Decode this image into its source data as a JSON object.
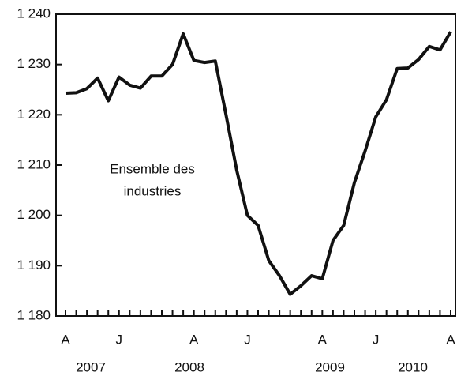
{
  "chart_data": {
    "type": "line",
    "annotation": [
      "Ensemble des",
      "industries"
    ],
    "years": [
      "2007",
      "2008",
      "2009",
      "2010"
    ],
    "categories": [
      "A",
      null,
      null,
      null,
      null,
      "J",
      null,
      null,
      null,
      null,
      null,
      null,
      "A",
      null,
      null,
      null,
      null,
      "J",
      null,
      null,
      null,
      null,
      null,
      null,
      "A",
      null,
      null,
      null,
      null,
      "J",
      null,
      null,
      null,
      null,
      null,
      null,
      "A"
    ],
    "series": [
      {
        "name": "Ensemble des industries",
        "color": "#111111",
        "values": [
          1224.3,
          1224.4,
          1225.2,
          1227.3,
          1222.8,
          1227.5,
          1225.9,
          1225.3,
          1227.7,
          1227.7,
          1230.0,
          1236.1,
          1230.8,
          1230.4,
          1230.7,
          1220.0,
          1209.0,
          1200.0,
          1198.0,
          1191.0,
          1188.0,
          1184.3,
          1186.0,
          1188.0,
          1187.4,
          1195.0,
          1198.0,
          1206.5,
          1212.8,
          1219.6,
          1223.0,
          1229.2,
          1229.3,
          1231.0,
          1233.6,
          1232.9,
          1236.5
        ]
      }
    ],
    "ylim": [
      1180,
      1240
    ],
    "yticks": [
      {
        "value": 1180,
        "label": "1 180"
      },
      {
        "value": 1190,
        "label": "1 190"
      },
      {
        "value": 1200,
        "label": "1 200"
      },
      {
        "value": 1210,
        "label": "1 210"
      },
      {
        "value": 1220,
        "label": "1 220"
      },
      {
        "value": 1230,
        "label": "1 230"
      },
      {
        "value": 1240,
        "label": "1 240"
      }
    ],
    "grid": false
  }
}
